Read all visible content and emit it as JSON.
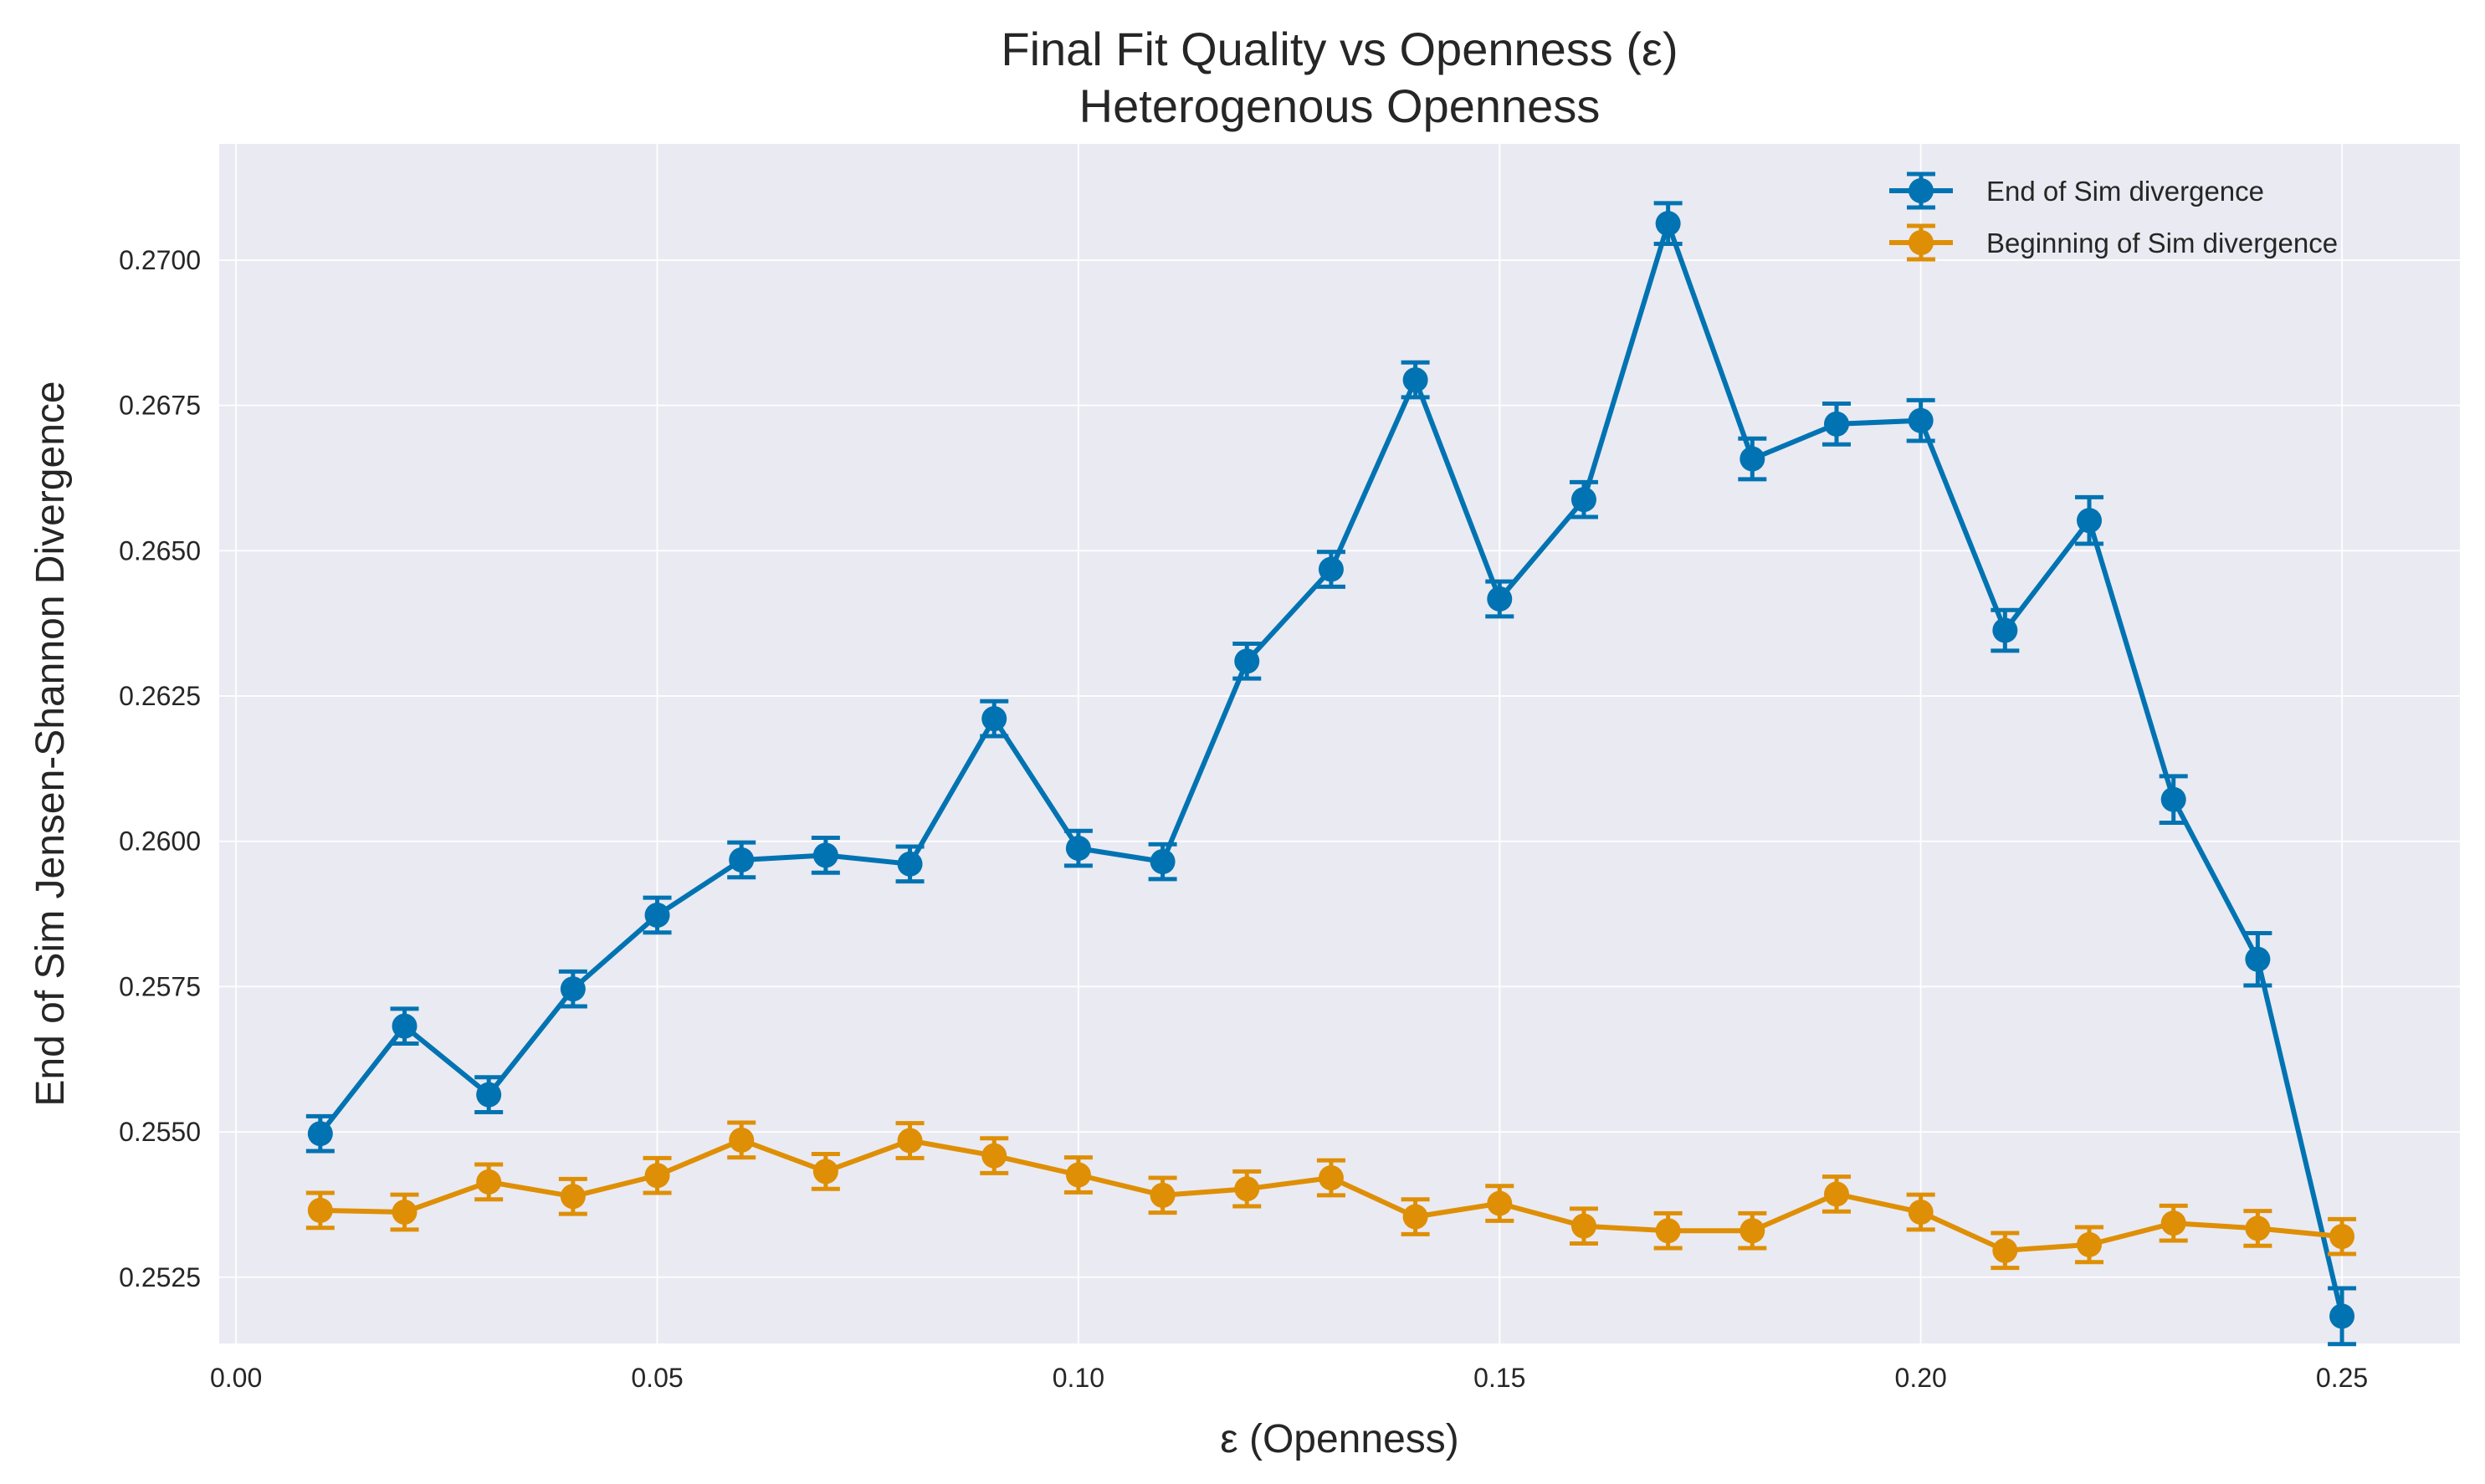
{
  "chart_data": {
    "type": "line",
    "title": "Final Fit Quality vs Openness (ε)",
    "subtitle": "Heterogenous Openness",
    "xlabel": "ε (Openness)",
    "ylabel": "End of Sim Jensen-Shannon Divergence",
    "xlim": [
      -0.002,
      0.264
    ],
    "ylim": [
      0.25136,
      0.272
    ],
    "xticks": [
      0.0,
      0.05,
      0.1,
      0.15,
      0.2,
      0.25
    ],
    "xtick_labels": [
      "0.00",
      "0.05",
      "0.10",
      "0.15",
      "0.20",
      "0.25"
    ],
    "yticks": [
      0.2525,
      0.255,
      0.2575,
      0.26,
      0.2625,
      0.265,
      0.2675,
      0.27
    ],
    "ytick_labels": [
      "0.2525",
      "0.2550",
      "0.2575",
      "0.2600",
      "0.2625",
      "0.2650",
      "0.2675",
      "0.2700"
    ],
    "grid": true,
    "legend_position": "top-right",
    "x": [
      0.01,
      0.02,
      0.03,
      0.04,
      0.05,
      0.06,
      0.07,
      0.08,
      0.09,
      0.1,
      0.11,
      0.12,
      0.13,
      0.14,
      0.15,
      0.16,
      0.17,
      0.18,
      0.19,
      0.2,
      0.21,
      0.22,
      0.23,
      0.24,
      0.25
    ],
    "series": [
      {
        "name": "End of Sim divergence",
        "color": "#0173b2",
        "values": [
          0.25497,
          0.25682,
          0.25564,
          0.25746,
          0.25873,
          0.25968,
          0.25976,
          0.25961,
          0.26211,
          0.25988,
          0.25965,
          0.2631,
          0.26468,
          0.26794,
          0.26417,
          0.26588,
          0.27063,
          0.26658,
          0.26718,
          0.26724,
          0.26363,
          0.26552,
          0.26072,
          0.25797,
          0.25183
        ],
        "errors": [
          0.0003,
          0.0003,
          0.0003,
          0.0003,
          0.0003,
          0.0003,
          0.0003,
          0.0003,
          0.0003,
          0.0003,
          0.0003,
          0.0003,
          0.0003,
          0.0003,
          0.0003,
          0.0003,
          0.00035,
          0.00035,
          0.00035,
          0.00035,
          0.00035,
          0.0004,
          0.0004,
          0.00045,
          0.00048
        ]
      },
      {
        "name": "Beginning of Sim divergence",
        "color": "#de8f05",
        "values": [
          0.25365,
          0.25362,
          0.25414,
          0.25389,
          0.25425,
          0.25486,
          0.25432,
          0.25485,
          0.25459,
          0.25426,
          0.25391,
          0.25402,
          0.25421,
          0.25354,
          0.25377,
          0.25338,
          0.2533,
          0.2533,
          0.25393,
          0.25362,
          0.25296,
          0.25306,
          0.25343,
          0.25334,
          0.2532
        ],
        "errors": [
          0.0003,
          0.0003,
          0.0003,
          0.0003,
          0.0003,
          0.0003,
          0.0003,
          0.0003,
          0.0003,
          0.0003,
          0.0003,
          0.0003,
          0.0003,
          0.0003,
          0.0003,
          0.0003,
          0.0003,
          0.0003,
          0.0003,
          0.0003,
          0.0003,
          0.0003,
          0.0003,
          0.0003,
          0.0003
        ]
      }
    ]
  }
}
